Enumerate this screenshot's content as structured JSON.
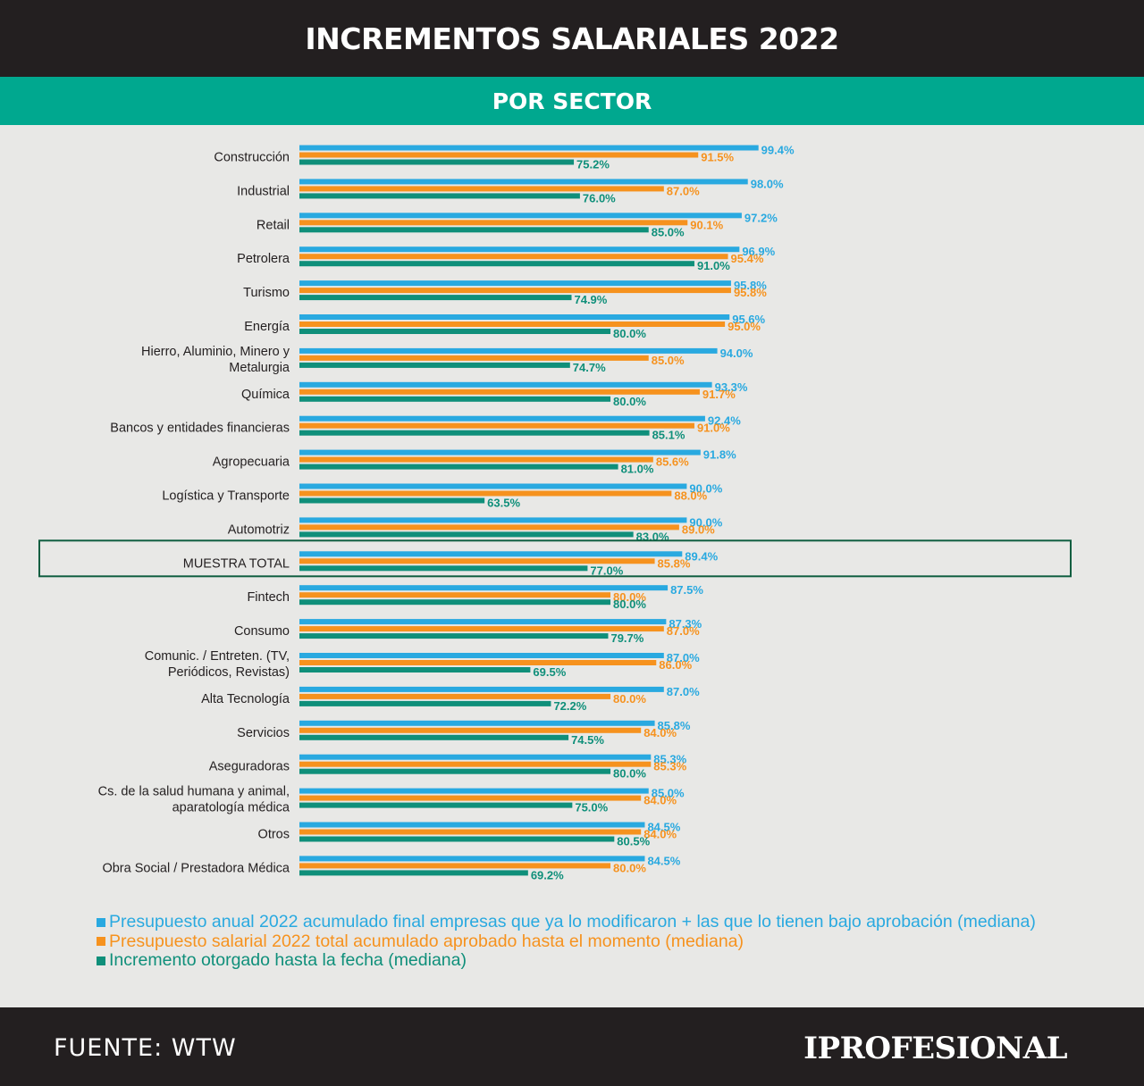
{
  "title": "INCREMENTOS SALARIALES 2022",
  "subtitle": "POR SECTOR",
  "source": "FUENTE: WTW",
  "brand": "IPROFESIONAL",
  "colors": {
    "budget": "#29a9e0",
    "approved": "#f6921e",
    "granted": "#0f8f7a",
    "highlight": "#0f5e40"
  },
  "chart_data": {
    "type": "bar",
    "orientation": "horizontal",
    "categories": [
      "Construcción",
      "Industrial",
      "Retail",
      "Petrolera",
      "Turismo",
      "Energía",
      "Hierro, Aluminio, Minero y Metalurgia",
      "Química",
      "Bancos y entidades financieras",
      "Agropecuaria",
      "Logística y Transporte",
      "Automotriz",
      "MUESTRA TOTAL",
      "Fintech",
      "Consumo",
      "Comunic. / Entreten. (TV, Periódicos, Revistas)",
      "Alta Tecnología",
      "Servicios",
      "Aseguradoras",
      "Cs. de la salud humana y animal, aparatología médica",
      "Otros",
      "Obra Social / Prestadora Médica"
    ],
    "highlight_category": "MUESTRA TOTAL",
    "value_suffix": "%",
    "series": [
      {
        "name": "Presupuesto anual 2022 acumulado final empresas que ya lo modificaron + las que lo tienen bajo aprobación (mediana)",
        "color": "#29a9e0",
        "values": [
          99.4,
          98.0,
          97.2,
          96.9,
          95.8,
          95.6,
          94.0,
          93.3,
          92.4,
          91.8,
          90.0,
          90.0,
          89.4,
          87.5,
          87.3,
          87.0,
          87.0,
          85.8,
          85.3,
          85.0,
          84.5,
          84.5
        ]
      },
      {
        "name": "Presupuesto salarial 2022 total acumulado aprobado hasta el momento (mediana)",
        "color": "#f6921e",
        "values": [
          91.5,
          87.0,
          90.1,
          95.4,
          95.8,
          95.0,
          85.0,
          91.7,
          91.0,
          85.6,
          88.0,
          89.0,
          85.8,
          80.0,
          87.0,
          86.0,
          80.0,
          84.0,
          85.3,
          84.0,
          84.0,
          80.0
        ]
      },
      {
        "name": "Incremento otorgado hasta la fecha (mediana)",
        "color": "#0f8f7a",
        "values": [
          75.2,
          76.0,
          85.0,
          91.0,
          74.9,
          80.0,
          74.7,
          80.0,
          85.1,
          81.0,
          63.5,
          83.0,
          77.0,
          80.0,
          79.7,
          69.5,
          72.2,
          74.5,
          80.0,
          75.0,
          80.5,
          69.2
        ]
      }
    ]
  }
}
